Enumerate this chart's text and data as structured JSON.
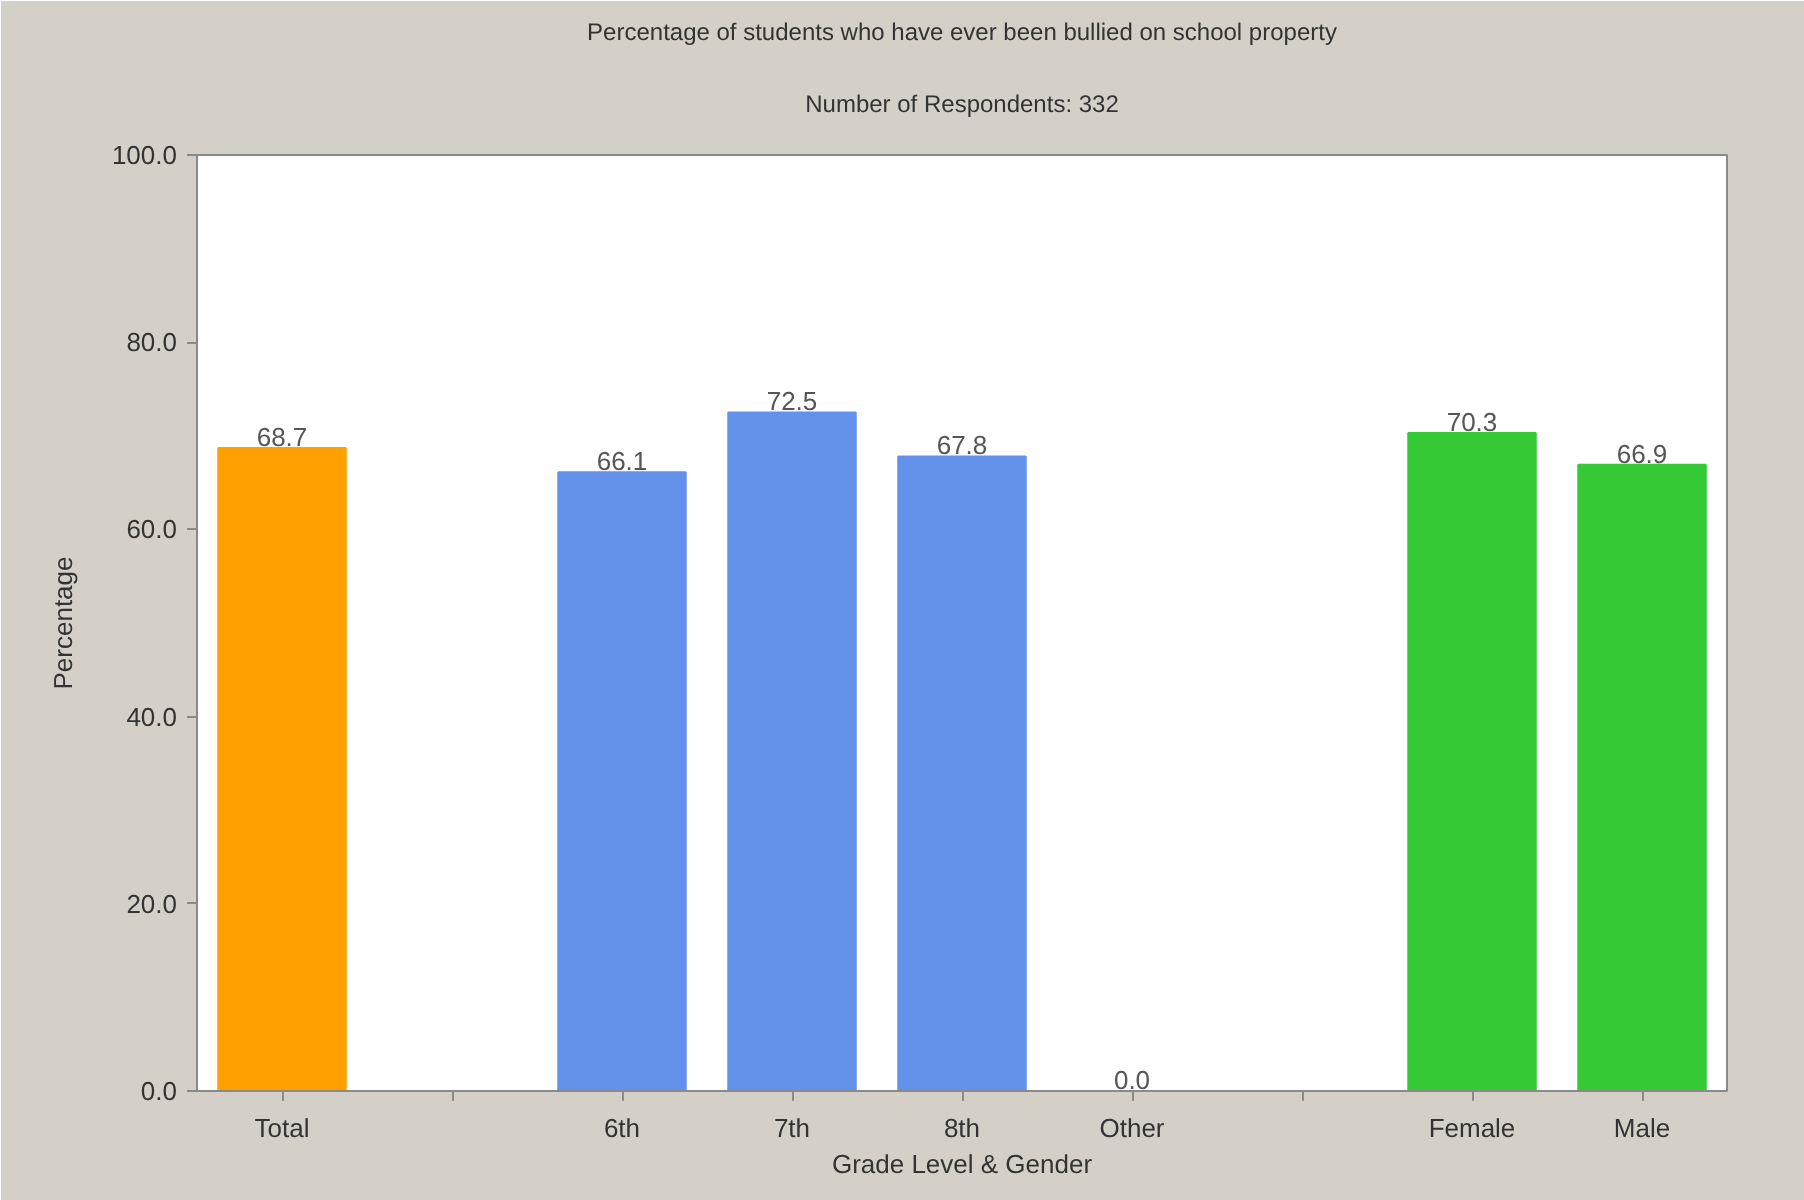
{
  "chart_data": {
    "type": "bar",
    "title": "Percentage of students who have ever been bullied on school property",
    "subtitle": "Number of Respondents: 332",
    "xlabel": "Grade Level & Gender",
    "ylabel": "Percentage",
    "categories": [
      "Total",
      null,
      "6th",
      "7th",
      "8th",
      "Other",
      null,
      "Female",
      "Male"
    ],
    "values": [
      68.7,
      null,
      66.1,
      72.5,
      67.8,
      0.0,
      null,
      70.3,
      66.9
    ],
    "value_labels": [
      "68.7",
      null,
      "66.1",
      "72.5",
      "67.8",
      "0.0",
      null,
      "70.3",
      "66.9"
    ],
    "colors": [
      "#ffa000",
      null,
      "#6492ea",
      "#6492ea",
      "#6492ea",
      "#6492ea",
      null,
      "#36c936",
      "#36c936"
    ],
    "ylim": [
      0,
      100
    ],
    "yticks": [
      {
        "value": 0,
        "label": "0.0"
      },
      {
        "value": 20,
        "label": "20.0"
      },
      {
        "value": 40,
        "label": "40.0"
      },
      {
        "value": 60,
        "label": "60.0"
      },
      {
        "value": 80,
        "label": "80.0"
      },
      {
        "value": 100,
        "label": "100.0"
      }
    ]
  }
}
